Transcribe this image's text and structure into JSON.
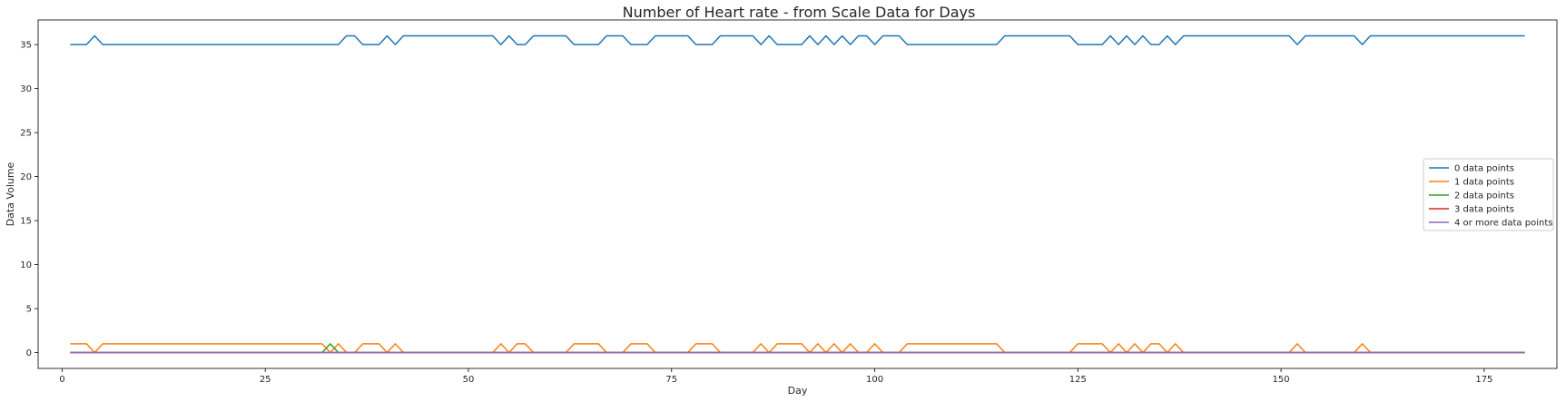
{
  "chart_data": {
    "type": "line",
    "title": "Number of Heart rate - from Scale Data for Days",
    "xlabel": "Day",
    "ylabel": "Data Volume",
    "xlim": [
      -2.95,
      183.95
    ],
    "ylim": [
      -1.8,
      37.8
    ],
    "xticks": [
      0,
      25,
      50,
      75,
      100,
      125,
      150,
      175
    ],
    "yticks": [
      0,
      5,
      10,
      15,
      20,
      25,
      30,
      35
    ],
    "grid": false,
    "legend_position": "center-right",
    "series": [
      {
        "name": "0 data points",
        "color": "#1f77b4",
        "x": [
          1,
          3,
          4,
          5,
          34,
          35,
          36,
          37,
          39,
          40,
          41,
          42,
          53,
          54,
          55,
          56,
          57,
          58,
          62,
          63,
          66,
          67,
          69,
          70,
          72,
          73,
          77,
          78,
          80,
          81,
          85,
          86,
          87,
          88,
          91,
          92,
          93,
          94,
          95,
          96,
          97,
          98,
          99,
          100,
          101,
          102,
          103,
          104,
          115,
          116,
          124,
          125,
          128,
          129,
          130,
          131,
          132,
          133,
          134,
          135,
          136,
          137,
          138,
          151,
          152,
          153,
          159,
          160,
          161,
          180
        ],
        "y": [
          35,
          35,
          36,
          35,
          35,
          36,
          36,
          35,
          35,
          36,
          35,
          36,
          36,
          35,
          36,
          35,
          35,
          36,
          36,
          35,
          35,
          36,
          36,
          35,
          35,
          36,
          36,
          35,
          35,
          36,
          36,
          35,
          36,
          35,
          35,
          36,
          35,
          36,
          35,
          36,
          35,
          36,
          36,
          35,
          36,
          36,
          36,
          35,
          35,
          36,
          36,
          35,
          35,
          36,
          35,
          36,
          35,
          36,
          35,
          35,
          36,
          35,
          36,
          36,
          35,
          36,
          36,
          35,
          36,
          36
        ]
      },
      {
        "name": "1 data points",
        "color": "#ff7f0e",
        "x": [
          1,
          3,
          4,
          5,
          32,
          33,
          34,
          35,
          36,
          37,
          39,
          40,
          41,
          42,
          53,
          54,
          55,
          56,
          57,
          58,
          62,
          63,
          66,
          67,
          69,
          70,
          72,
          73,
          77,
          78,
          80,
          81,
          85,
          86,
          87,
          88,
          91,
          92,
          93,
          94,
          95,
          96,
          97,
          98,
          99,
          100,
          101,
          102,
          103,
          104,
          115,
          116,
          124,
          125,
          128,
          129,
          130,
          131,
          132,
          133,
          134,
          135,
          136,
          137,
          138,
          151,
          152,
          153,
          159,
          160,
          161,
          180
        ],
        "y": [
          1,
          1,
          0,
          1,
          1,
          0,
          1,
          0,
          0,
          1,
          1,
          0,
          1,
          0,
          0,
          1,
          0,
          1,
          1,
          0,
          0,
          1,
          1,
          0,
          0,
          1,
          1,
          0,
          0,
          1,
          1,
          0,
          0,
          1,
          0,
          1,
          1,
          0,
          1,
          0,
          1,
          0,
          1,
          0,
          0,
          1,
          0,
          0,
          0,
          1,
          1,
          0,
          0,
          1,
          1,
          0,
          1,
          0,
          1,
          0,
          1,
          1,
          0,
          1,
          0,
          0,
          1,
          0,
          0,
          1,
          0,
          0
        ]
      },
      {
        "name": "2 data points",
        "color": "#2ca02c",
        "x": [
          1,
          32,
          33,
          34,
          180
        ],
        "y": [
          0,
          0,
          1,
          0,
          0
        ]
      },
      {
        "name": "3 data points",
        "color": "#d62728",
        "x": [
          1,
          180
        ],
        "y": [
          0,
          0
        ]
      },
      {
        "name": "4 or more data points",
        "color": "#9467bd",
        "x": [
          1,
          180
        ],
        "y": [
          0,
          0
        ]
      }
    ]
  }
}
